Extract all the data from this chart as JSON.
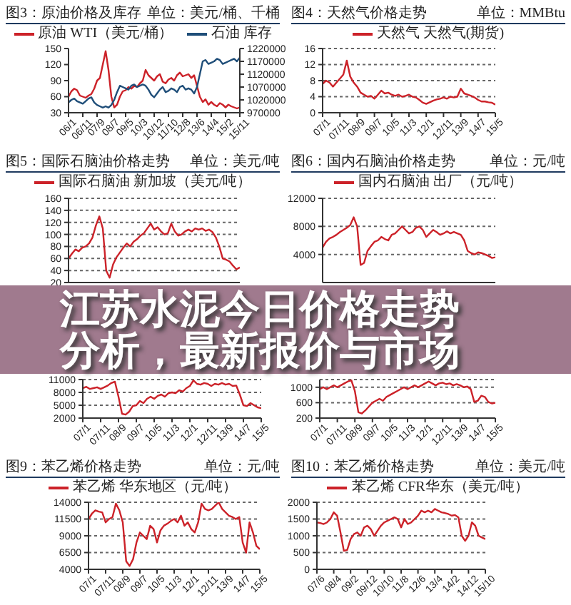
{
  "chart_data": [
    {
      "type": "line",
      "title": "图3：原油价格及库存",
      "subtitle": "单位：美元/桶、千桶",
      "legend": "top",
      "categories": [
        "06/1",
        null,
        null,
        null,
        null,
        "06/11",
        null,
        null,
        null,
        null,
        "07/9",
        null,
        null,
        null,
        null,
        "08/7",
        null,
        null,
        null,
        null,
        "09/5",
        null,
        null,
        null,
        null,
        "10/3",
        null,
        null,
        null,
        null,
        "10/12",
        null,
        null,
        null,
        null,
        "11/10",
        null,
        null,
        null,
        null,
        "12/8",
        null,
        null,
        null,
        null,
        "13/6",
        null,
        null,
        null,
        null,
        "14/4",
        null,
        null,
        null,
        null,
        "15/2",
        null,
        null,
        null,
        null,
        "15/11"
      ],
      "series": [
        {
          "name": "原油 WTI（美元/桶）",
          "color": "#cc2229",
          "values": [
            60,
            70,
            75,
            72,
            62,
            60,
            58,
            62,
            65,
            75,
            90,
            95,
            120,
            145,
            110,
            60,
            40,
            45,
            60,
            70,
            72,
            78,
            75,
            80,
            78,
            85,
            90,
            110,
            100,
            95,
            90,
            98,
            102,
            88,
            85,
            92,
            95,
            90,
            100,
            105,
            98,
            100,
            102,
            95,
            100,
            80,
            60,
            50,
            55,
            45,
            50,
            45,
            42,
            48,
            45,
            40,
            45,
            42,
            40,
            38,
            40
          ]
        },
        {
          "name": "石油 库存",
          "color": "#1f4e79",
          "axis": "y2",
          "values": [
            1010000,
            1020000,
            1025000,
            1015000,
            1010000,
            1005000,
            1015000,
            1025000,
            1030000,
            1010000,
            1000000,
            995000,
            990000,
            995000,
            990000,
            1000000,
            1020000,
            1050000,
            1075000,
            1070000,
            1065000,
            1060000,
            1075000,
            1080000,
            1070000,
            1075000,
            1080000,
            1075000,
            1060000,
            1040000,
            1030000,
            1045000,
            1060000,
            1070000,
            1050000,
            1055000,
            1065000,
            1060000,
            1050000,
            1070000,
            1075000,
            1060000,
            1065000,
            1060000,
            1045000,
            1070000,
            1120000,
            1170000,
            1175000,
            1160000,
            1165000,
            1170000,
            1180000,
            1175000,
            1160000,
            1165000,
            1170000,
            1175000,
            1180000,
            1170000,
            1185000
          ]
        }
      ],
      "ylim": [
        30,
        150
      ],
      "yticks": [
        30,
        60,
        90,
        120,
        150
      ],
      "y2lim": [
        970000,
        1220000
      ],
      "y2ticks": [
        970000,
        1020000,
        1070000,
        1120000,
        1170000,
        1220000
      ]
    },
    {
      "type": "line",
      "title": "图4：天然气价格走势",
      "subtitle": "单位：MMBtu",
      "legend": "top",
      "grid": "y",
      "categories": [
        "07/1",
        null,
        null,
        null,
        null,
        "07/11",
        null,
        null,
        null,
        null,
        "08/9",
        null,
        null,
        null,
        null,
        "09/7",
        null,
        null,
        null,
        null,
        "10/5",
        null,
        null,
        null,
        null,
        "11/3",
        null,
        null,
        null,
        null,
        "12/1",
        null,
        null,
        null,
        null,
        "12/11",
        null,
        null,
        null,
        null,
        "13/9",
        null,
        null,
        null,
        null,
        "14/7",
        null,
        null,
        null,
        null,
        "15/5"
      ],
      "series": [
        {
          "name": "天然气 天然气(期货)",
          "color": "#cc2229",
          "values": [
            7.2,
            8,
            7.5,
            6.5,
            7.5,
            8.5,
            9.5,
            13,
            9,
            7.5,
            6.5,
            5,
            4.5,
            4,
            4.2,
            3.5,
            4.5,
            5.5,
            4.8,
            5,
            4.5,
            4.2,
            4.5,
            4,
            4.2,
            4.5,
            4,
            3.8,
            3.2,
            2.5,
            2.2,
            2.6,
            3,
            3.3,
            3.5,
            3.8,
            3.5,
            4,
            3.8,
            4,
            6,
            4.8,
            4.5,
            4.2,
            3.8,
            3.2,
            2.8,
            2.8,
            2.6,
            2.5,
            2
          ]
        }
      ],
      "ylim": [
        0,
        16
      ],
      "yticks": [
        0,
        4,
        8,
        12,
        16
      ]
    },
    {
      "type": "line",
      "title": "图5：国际石脑油价格走势",
      "subtitle": "单位：美元/吨",
      "legend": "top",
      "grid": "y",
      "tick_labels": "y",
      "categories": [
        null,
        null,
        null,
        null,
        null,
        null,
        null,
        null,
        null,
        null,
        null,
        null,
        null,
        null,
        null,
        null,
        null,
        null,
        null,
        null,
        null,
        null,
        null,
        null,
        null,
        null,
        null,
        null,
        null,
        null,
        null,
        null,
        null,
        null,
        null,
        null,
        null,
        null,
        null,
        null,
        null,
        null,
        null,
        null,
        null,
        null,
        null,
        null,
        null,
        null,
        null
      ],
      "series": [
        {
          "name": "国际石脑油 新加坡（美元/吨）",
          "color": "#cc2229",
          "values": [
            60,
            68,
            75,
            72,
            78,
            80,
            85,
            95,
            115,
            130,
            110,
            40,
            28,
            50,
            62,
            70,
            78,
            85,
            80,
            88,
            92,
            98,
            102,
            110,
            118,
            108,
            112,
            105,
            100,
            102,
            118,
            105,
            98,
            100,
            105,
            108,
            105,
            110,
            108,
            110,
            106,
            108,
            104,
            95,
            80,
            60,
            58,
            55,
            48,
            42,
            45
          ]
        }
      ],
      "ylim": [
        20,
        160
      ],
      "yticks": [
        20,
        40,
        60,
        80,
        100,
        120,
        140,
        160
      ]
    },
    {
      "type": "line",
      "title": "图6：国内石脑油价格走势",
      "subtitle": "单位：元/吨",
      "legend": "top",
      "grid": "y",
      "tick_labels": "y",
      "categories": [
        null,
        null,
        null,
        null,
        null,
        null,
        null,
        null,
        null,
        null,
        null,
        null,
        null,
        null,
        null,
        null,
        null,
        null,
        null,
        null,
        null,
        null,
        null,
        null,
        null,
        null,
        null,
        null,
        null,
        null,
        null,
        null,
        null,
        null,
        null,
        null,
        null,
        null,
        null,
        null,
        null,
        null,
        null,
        null,
        null,
        null,
        null,
        null,
        null,
        null,
        null
      ],
      "series": [
        {
          "name": "国内石脑油 出厂（元/吨）",
          "color": "#cc2229",
          "values": [
            5000,
            5800,
            6300,
            6500,
            6800,
            7200,
            7500,
            7800,
            8200,
            9300,
            8000,
            2500,
            2800,
            4500,
            5200,
            5800,
            6000,
            6500,
            6200,
            6000,
            6800,
            7000,
            7500,
            8000,
            7500,
            7000,
            7200,
            7800,
            8000,
            7500,
            6500,
            7000,
            7500,
            7200,
            6800,
            7000,
            7300,
            7000,
            7200,
            7000,
            6800,
            6000,
            4500,
            4200,
            4000,
            4300,
            4200,
            4000,
            3800,
            3500,
            3600
          ]
        }
      ],
      "ylim": [
        0,
        12000
      ],
      "yticks": [
        4000,
        8000,
        12000
      ]
    },
    {
      "type": "other",
      "title": "江苏水泥今日价格走势分析，最新报价与市场"
    },
    {
      "type": "line",
      "grid": "y",
      "categories": [
        "07/1",
        null,
        null,
        null,
        null,
        "07/11",
        null,
        null,
        null,
        null,
        "08/9",
        null,
        null,
        null,
        null,
        "09/7",
        null,
        null,
        null,
        null,
        "10/5",
        null,
        null,
        null,
        null,
        "11/3",
        null,
        null,
        null,
        null,
        "12/1",
        null,
        null,
        null,
        null,
        "12/11",
        null,
        null,
        null,
        null,
        "13/9",
        null,
        null,
        null,
        null,
        "14/7",
        null,
        null,
        null,
        null,
        "15/5"
      ],
      "series": [
        {
          "color": "#cc2229",
          "values": [
            9000,
            9300,
            8800,
            9000,
            9200,
            8800,
            9200,
            9600,
            10200,
            10500,
            7000,
            3000,
            2800,
            3500,
            4800,
            5000,
            6000,
            5500,
            6500,
            7000,
            6500,
            7200,
            7500,
            7000,
            7800,
            8000,
            7800,
            8500,
            8200,
            9000,
            9500,
            10800,
            10000,
            9800,
            10200,
            10000,
            9500,
            10000,
            9800,
            10200,
            9800,
            10000,
            9500,
            9600,
            7500,
            5000,
            4800,
            5500,
            5000,
            4500,
            4300
          ]
        }
      ],
      "ylim": [
        2000,
        11000
      ],
      "yticks": [
        2000,
        5000,
        8000,
        11000
      ]
    },
    {
      "type": "line",
      "grid": "y",
      "categories": [
        "07/1",
        null,
        null,
        null,
        null,
        "07/11",
        null,
        null,
        null,
        null,
        "08/9",
        null,
        null,
        null,
        null,
        "09/7",
        null,
        null,
        null,
        null,
        "10/5",
        null,
        null,
        null,
        null,
        "11/3",
        null,
        null,
        null,
        null,
        "12/1",
        null,
        null,
        null,
        null,
        "12/11",
        null,
        null,
        null,
        null,
        "13/9",
        null,
        null,
        null,
        null,
        "14/7",
        null,
        null,
        null,
        null,
        "15/5"
      ],
      "series": [
        {
          "color": "#cc2229",
          "values": [
            950,
            1000,
            950,
            1000,
            1050,
            1000,
            1050,
            1100,
            1150,
            1180,
            900,
            350,
            320,
            400,
            500,
            600,
            650,
            700,
            650,
            750,
            800,
            850,
            900,
            950,
            1000,
            950,
            1000,
            1050,
            1000,
            1050,
            1100,
            1150,
            1100,
            1050,
            1100,
            1120,
            1080,
            1100,
            1050,
            1080,
            1050,
            1000,
            1020,
            950,
            620,
            650,
            780,
            750,
            620,
            580,
            600
          ]
        }
      ],
      "ylim": [
        200,
        1200
      ],
      "yticks": [
        200,
        600,
        1000
      ]
    },
    {
      "type": "line",
      "title": "图9：苯乙烯价格走势",
      "subtitle": "单位：元/吨",
      "legend": "top",
      "grid": "y",
      "categories": [
        "07/1",
        null,
        null,
        null,
        null,
        "07/11",
        null,
        null,
        null,
        null,
        "08/9",
        null,
        null,
        null,
        null,
        "09/7",
        null,
        null,
        null,
        null,
        "10/5",
        null,
        null,
        null,
        null,
        "11/3",
        null,
        null,
        null,
        null,
        "12/1",
        null,
        null,
        null,
        null,
        "12/11",
        null,
        null,
        null,
        null,
        "13/9",
        null,
        null,
        null,
        null,
        "14/7",
        null,
        null,
        null,
        null,
        "15/5"
      ],
      "series": [
        {
          "name": "苯乙烯 华东地区（元/吨）",
          "color": "#cc2229",
          "values": [
            11500,
            12300,
            12800,
            12600,
            12500,
            11000,
            11500,
            11800,
            13800,
            12800,
            11000,
            5200,
            4500,
            5500,
            8000,
            9500,
            9000,
            8500,
            10500,
            10000,
            8000,
            9800,
            10500,
            10800,
            11200,
            11500,
            11000,
            12000,
            10500,
            11000,
            10000,
            9500,
            11000,
            13800,
            13000,
            12800,
            13000,
            13500,
            14000,
            13000,
            12500,
            12000,
            11800,
            11500,
            11800,
            8000,
            6500,
            11000,
            9500,
            7500,
            7000
          ]
        }
      ],
      "ylim": [
        4000,
        14000
      ],
      "yticks": [
        4000,
        6500,
        9000,
        11500,
        14000
      ]
    },
    {
      "type": "line",
      "title": "图10：苯乙烯价格走势",
      "subtitle": "单位：美元/吨",
      "legend": "top",
      "grid": "y",
      "categories": [
        "07/6",
        null,
        null,
        null,
        null,
        "08/4",
        null,
        null,
        null,
        null,
        "09/2",
        null,
        null,
        null,
        null,
        "09/12",
        null,
        null,
        null,
        null,
        "10/10",
        null,
        null,
        null,
        null,
        "11/8",
        null,
        null,
        null,
        null,
        "12/6",
        null,
        null,
        null,
        null,
        "13/4",
        null,
        null,
        null,
        null,
        "14/2",
        null,
        null,
        null,
        null,
        "14/12",
        null,
        null,
        null,
        null,
        "15/10"
      ],
      "series": [
        {
          "name": "苯乙烯 CFR华东（美元/吨）",
          "color": "#cc2229",
          "values": [
            1400,
            1380,
            1350,
            1400,
            1500,
            1700,
            1600,
            1100,
            550,
            580,
            900,
            1050,
            1100,
            1000,
            1250,
            1300,
            1200,
            1000,
            1150,
            1300,
            1400,
            1450,
            1500,
            1550,
            1500,
            1250,
            1500,
            1350,
            1400,
            1500,
            1600,
            1750,
            1700,
            1750,
            1700,
            1800,
            1750,
            1700,
            1680,
            1650,
            1600,
            1620,
            1550,
            1000,
            850,
            1000,
            1400,
            1300,
            1000,
            950,
            900
          ]
        }
      ],
      "ylim": [
        0,
        2000
      ],
      "yticks": [
        0,
        500,
        1000,
        1500,
        2000
      ]
    }
  ]
}
